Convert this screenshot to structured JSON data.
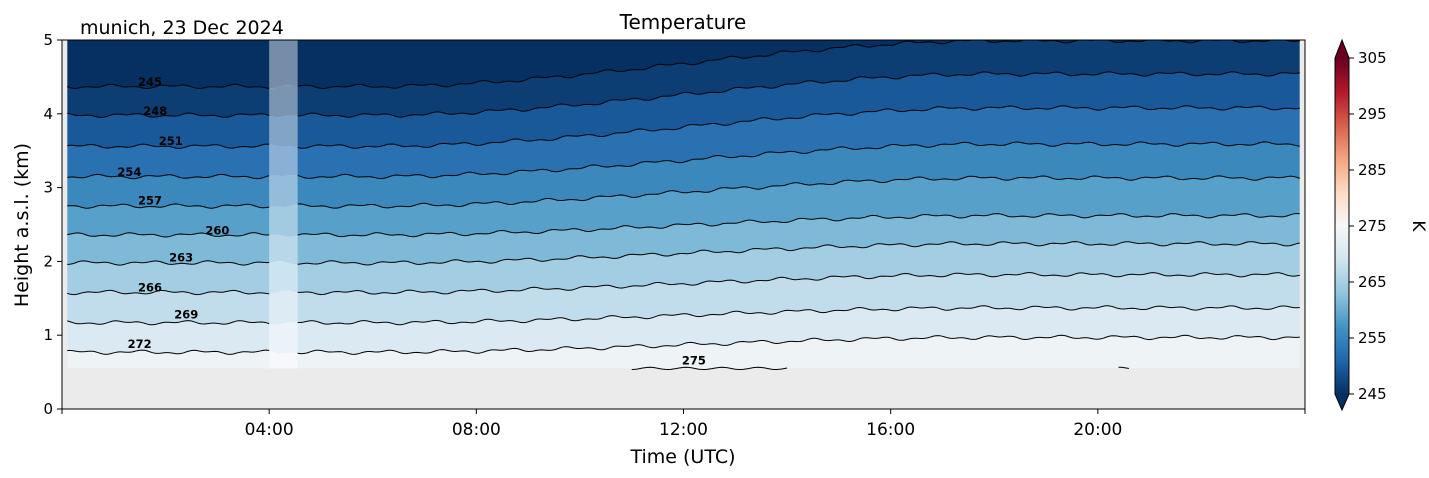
{
  "chart_data": {
    "type": "heatmap",
    "title": "Temperature",
    "subtitle": "munich, 23 Dec 2024",
    "xlabel": "Time (UTC)",
    "ylabel": "Height a.s.l. (km)",
    "x_ticks": [
      "04:00",
      "08:00",
      "12:00",
      "16:00",
      "20:00"
    ],
    "x_tick_hours": [
      4,
      8,
      12,
      16,
      20
    ],
    "xlim_hours": [
      0,
      24
    ],
    "ylim": [
      0,
      5
    ],
    "y_ticks": [
      "0",
      "1",
      "2",
      "3",
      "4",
      "5"
    ],
    "colorbar": {
      "label": "K",
      "ticks": [
        "245",
        "255",
        "265",
        "275",
        "285",
        "295",
        "305"
      ],
      "range": [
        245,
        305
      ],
      "extend": "both",
      "colormap": [
        "#053061",
        "#2166ac",
        "#4393c3",
        "#92c5de",
        "#d1e5f0",
        "#f7f7f7",
        "#fddbc7",
        "#f4a582",
        "#d6604d",
        "#b2182b",
        "#67001f"
      ]
    },
    "data_gap_hours": [
      4.0,
      4.55
    ],
    "lowest_valid_height_km": 0.55,
    "no_data_color": "#ebebeb",
    "contour_levels": [
      272,
      269,
      266,
      263,
      260,
      257,
      254,
      251,
      248,
      245
    ],
    "contour_start_heights_km": [
      0.77,
      1.17,
      1.58,
      1.98,
      2.36,
      2.75,
      3.15,
      3.56,
      3.98,
      4.37
    ],
    "contour_rise_km": [
      0.2,
      0.2,
      0.24,
      0.26,
      0.26,
      0.38,
      0.44,
      0.52,
      0.56,
      0.62
    ],
    "contour_label_hours": [
      1.5,
      2.4,
      1.7,
      2.3,
      3.0,
      1.7,
      1.3,
      2.1,
      1.8,
      1.7
    ],
    "contour_275": {
      "label": "275",
      "height_km": 0.55,
      "label_hour": 12.2,
      "segment_hours": [
        [
          11.0,
          14.0
        ],
        [
          20.4,
          20.6
        ]
      ]
    }
  }
}
